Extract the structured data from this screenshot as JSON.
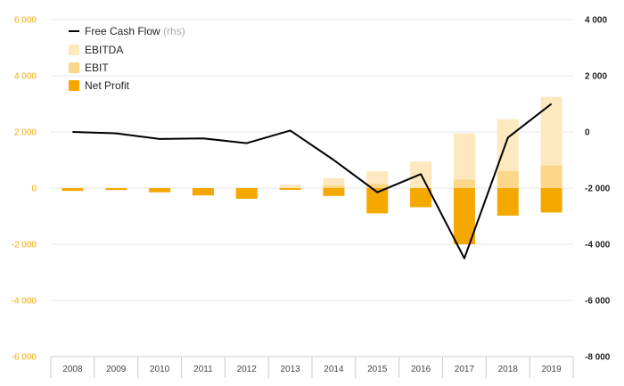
{
  "chart_data": {
    "type": "bar",
    "categories": [
      "2008",
      "2009",
      "2010",
      "2011",
      "2012",
      "2013",
      "2014",
      "2015",
      "2016",
      "2017",
      "2018",
      "2019"
    ],
    "series": [
      {
        "name": "EBITDA",
        "kind": "bar",
        "axis": "left",
        "color": "#fde8bf",
        "values": [
          -60,
          -30,
          -80,
          -150,
          -250,
          120,
          350,
          600,
          950,
          1950,
          2450,
          3250
        ]
      },
      {
        "name": "EBIT",
        "kind": "bar",
        "axis": "left",
        "color": "#fcd78a",
        "values": [
          -80,
          -50,
          -120,
          -200,
          -330,
          -30,
          100,
          150,
          0,
          300,
          600,
          800
        ]
      },
      {
        "name": "Net Profit",
        "kind": "bar",
        "axis": "left",
        "color": "#f5a800",
        "values": [
          -100,
          -70,
          -150,
          -260,
          -380,
          -60,
          -280,
          -900,
          -680,
          -2000,
          -980,
          -870
        ]
      },
      {
        "name": "Free Cash Flow",
        "name_suffix": "(rhs)",
        "kind": "line",
        "axis": "right",
        "color": "#000000",
        "values": [
          0,
          -50,
          -250,
          -230,
          -400,
          50,
          -1000,
          -2150,
          -1500,
          -4500,
          -200,
          1000
        ]
      }
    ],
    "y_left": {
      "min": -6000,
      "max": 6000,
      "ticks": [
        6000,
        4000,
        2000,
        0,
        -2000,
        -4000,
        -6000
      ],
      "tick_labels": [
        "6 000",
        "4 000",
        "2 000",
        "0",
        "-2 000",
        "-4 000",
        "-6 000"
      ]
    },
    "y_right": {
      "min": -8000,
      "max": 4000,
      "ticks": [
        4000,
        2000,
        0,
        -2000,
        -4000,
        -6000,
        -8000
      ],
      "tick_labels": [
        "4 000",
        "2 000",
        "0",
        "-2 000",
        "-4 000",
        "-6 000",
        "-8 000"
      ]
    },
    "grid": true,
    "legend_position": "top-left",
    "colors": {
      "left_axis": "#f5a800",
      "grid": "#e6e6e6",
      "axis_box": "#cccccc"
    }
  }
}
